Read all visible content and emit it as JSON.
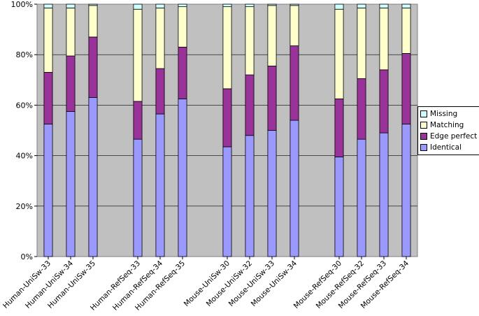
{
  "chart_data": {
    "type": "bar",
    "stacked": "percent",
    "title": "",
    "xlabel": "",
    "ylabel": "",
    "ylim": [
      0,
      100
    ],
    "yticks": [
      "0%",
      "20%",
      "40%",
      "60%",
      "80%",
      "100%"
    ],
    "categories": [
      "Human-UniSw-33",
      "Human-UniSw-34",
      "Human-UniSw-35",
      "Human-RefSeq-33",
      "Human-RefSeq-34",
      "Human-RefSeq-35",
      "Mouse-UniSw-30",
      "Mouse-UniSw-32",
      "Mouse-UniSw-33",
      "Mouse-UniSw-34",
      "Mouse-RefSeq-30",
      "Mouse-RefSeq-32",
      "Mouse-RefSeq-33",
      "Mouse-RefSeq-34"
    ],
    "groups": [
      [
        0,
        1,
        2
      ],
      [
        3,
        4,
        5
      ],
      [
        6,
        7,
        8,
        9
      ],
      [
        10,
        11,
        12,
        13
      ]
    ],
    "series": [
      {
        "name": "Identical",
        "color": "#9999ff",
        "values": [
          52.5,
          57.5,
          63,
          46.5,
          56.5,
          62.5,
          43.5,
          48,
          50,
          54,
          39.5,
          46.5,
          49,
          52.5
        ]
      },
      {
        "name": "Edge perfect",
        "color": "#993399",
        "values": [
          20.5,
          22,
          24,
          15,
          18,
          20.5,
          23,
          24,
          25.5,
          29.5,
          23,
          24,
          25,
          28
        ]
      },
      {
        "name": "Matching",
        "color": "#ffffcc",
        "values": [
          25.5,
          19,
          12.5,
          36.5,
          24,
          16,
          32.5,
          27,
          24,
          16,
          35.5,
          28,
          24.5,
          18
        ]
      },
      {
        "name": "Missing",
        "color": "#ccffff",
        "values": [
          1.5,
          1.5,
          0.5,
          2,
          1.5,
          1,
          1,
          1,
          0.5,
          0.5,
          2,
          1.5,
          1.5,
          1.5
        ]
      }
    ],
    "legend": {
      "position": "right",
      "entries": [
        "Missing",
        "Matching",
        "Edge perfect",
        "Identical"
      ],
      "colors": [
        "#ccffff",
        "#ffffcc",
        "#993399",
        "#9999ff"
      ]
    },
    "colors": {
      "plot_background": "#c0c0c0",
      "gridline": "#000000"
    }
  }
}
